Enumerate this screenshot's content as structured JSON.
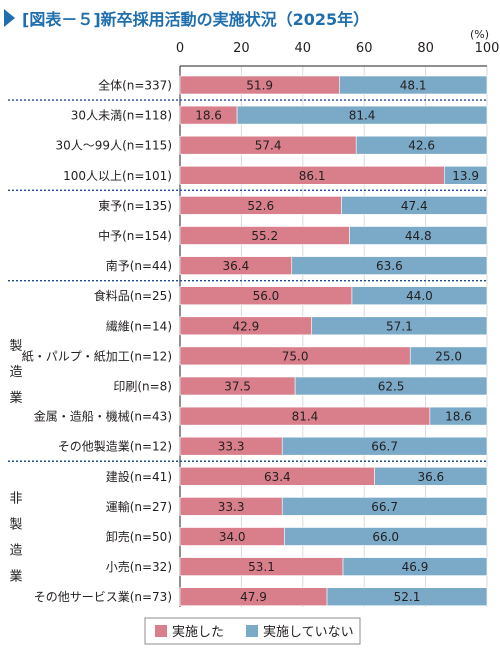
{
  "chart_data": {
    "type": "bar",
    "stacked": true,
    "orientation": "horizontal",
    "title": "[図表－５]新卒採用活動の実施状況（2025年）",
    "unit": "(%)",
    "xlim": [
      0,
      100
    ],
    "xticks": [
      0,
      20,
      40,
      60,
      80,
      100
    ],
    "categories": [
      "全体(n=337)",
      "30人未満(n=118)",
      "30人～99人(n=115)",
      "100人以上(n=101)",
      "東予(n=135)",
      "中予(n=154)",
      "南予(n=44)",
      "食料品(n=25)",
      "繊維(n=14)",
      "紙・パルプ・紙加工(n=12)",
      "印刷(n=8)",
      "金属・造船・機械(n=43)",
      "その他製造業(n=12)",
      "建設(n=41)",
      "運輸(n=27)",
      "卸売(n=50)",
      "小売(n=32)",
      "その他サービス業(n=73)"
    ],
    "series": [
      {
        "name": "実施した",
        "color": "#d97f8b",
        "values": [
          51.9,
          18.6,
          57.4,
          86.1,
          52.6,
          55.2,
          36.4,
          56.0,
          42.9,
          75.0,
          37.5,
          81.4,
          33.3,
          63.4,
          33.3,
          34.0,
          53.1,
          47.9
        ]
      },
      {
        "name": "実施していない",
        "color": "#7baac8",
        "values": [
          48.1,
          81.4,
          42.6,
          13.9,
          47.4,
          44.8,
          63.6,
          44.0,
          57.1,
          25.0,
          62.5,
          18.6,
          66.7,
          36.6,
          66.7,
          66.0,
          46.9,
          52.1
        ]
      }
    ],
    "group_labels": [
      {
        "label": "製造業",
        "first_category": 7,
        "last_category": 12
      },
      {
        "label": "非製造業",
        "first_category": 13,
        "last_category": 17
      }
    ],
    "separators_after": [
      0,
      3,
      6,
      12
    ],
    "legend_position": "bottom"
  },
  "colors": {
    "title_accent": "#1f6fae",
    "separator": "#1f4f8f"
  }
}
